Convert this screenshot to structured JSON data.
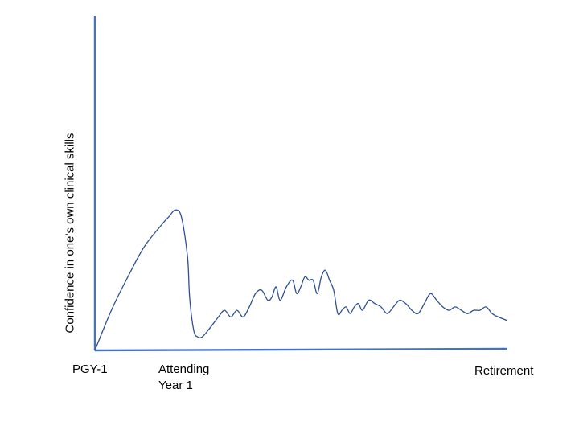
{
  "chart_data": {
    "type": "line",
    "title": "",
    "ylabel": "Confidence in one’s own clinical skills",
    "xlabel": "",
    "x_tick_labels": [
      "PGY-1",
      "Attending Year 1",
      "Retirement"
    ],
    "x_tick_label_lines": [
      [
        "PGY-1"
      ],
      [
        "Attending",
        "Year 1"
      ],
      [
        "Retirement"
      ]
    ],
    "ylim": [
      0,
      1
    ],
    "grid": false,
    "colors": {
      "axis": "#4472c4",
      "line": "#2f4f93"
    },
    "series": [
      {
        "x": [
          0,
          0.08,
          0.16,
          0.24,
          0.33,
          0.36,
          0.39,
          0.42,
          0.45,
          0.46,
          0.48,
          0.5,
          0.52,
          0.55,
          0.6,
          0.63,
          0.66,
          0.69,
          0.72,
          0.75,
          0.78,
          0.81,
          0.84,
          0.86,
          0.88,
          0.9,
          0.93,
          0.96,
          0.98,
          1.0,
          1.02,
          1.04,
          1.06,
          1.08,
          1.1,
          1.12,
          1.14,
          1.16,
          1.18,
          1.2,
          1.22,
          1.24,
          1.26,
          1.28,
          1.3,
          1.33,
          1.36,
          1.39,
          1.42,
          1.45,
          1.48,
          1.51,
          1.54,
          1.57,
          1.6,
          1.63,
          1.66,
          1.69,
          1.72,
          1.75,
          1.78,
          1.81,
          1.84,
          1.87,
          1.9,
          1.93,
          1.96,
          2.0
        ],
        "y": [
          0,
          0.12,
          0.22,
          0.31,
          0.38,
          0.4,
          0.42,
          0.4,
          0.28,
          0.16,
          0.06,
          0.04,
          0.04,
          0.06,
          0.1,
          0.12,
          0.1,
          0.12,
          0.1,
          0.13,
          0.17,
          0.18,
          0.15,
          0.16,
          0.19,
          0.15,
          0.19,
          0.21,
          0.17,
          0.19,
          0.22,
          0.21,
          0.21,
          0.17,
          0.22,
          0.24,
          0.21,
          0.18,
          0.11,
          0.12,
          0.13,
          0.11,
          0.13,
          0.14,
          0.12,
          0.15,
          0.14,
          0.13,
          0.11,
          0.13,
          0.15,
          0.14,
          0.12,
          0.11,
          0.14,
          0.17,
          0.15,
          0.13,
          0.12,
          0.13,
          0.12,
          0.11,
          0.12,
          0.12,
          0.13,
          0.11,
          0.1,
          0.09
        ]
      }
    ]
  }
}
